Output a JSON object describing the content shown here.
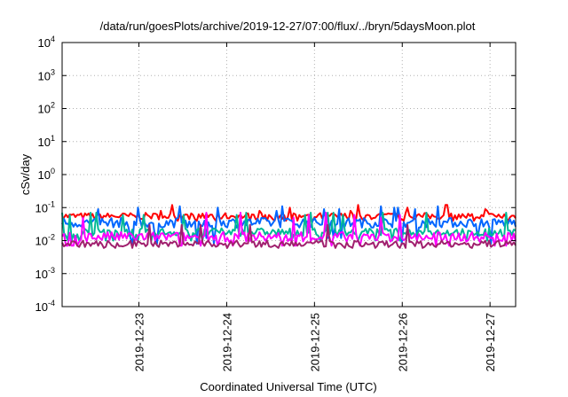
{
  "chart_data": {
    "type": "line",
    "title": "/data/run/goesPlots/archive/2019-12-27/07:00/flux/../bryn/5daysMoon.plot",
    "xlabel": "Coordinated Universal Time (UTC)",
    "ylabel": "cSv/day",
    "yscale": "log",
    "ylim": [
      0.0001,
      10000
    ],
    "y_ticks": [
      {
        "base": "10",
        "exp": "-4"
      },
      {
        "base": "10",
        "exp": "-3"
      },
      {
        "base": "10",
        "exp": "-2"
      },
      {
        "base": "10",
        "exp": "-1"
      },
      {
        "base": "10",
        "exp": "0"
      },
      {
        "base": "10",
        "exp": "1"
      },
      {
        "base": "10",
        "exp": "2"
      },
      {
        "base": "10",
        "exp": "3"
      },
      {
        "base": "10",
        "exp": "4"
      }
    ],
    "x_range": [
      "2019-12-22 03:00",
      "2019-12-27 07:00"
    ],
    "x_ticks": [
      "2019-12-23",
      "2019-12-24",
      "2019-12-25",
      "2019-12-26",
      "2019-12-27"
    ],
    "grid": true,
    "legend": "none",
    "series": [
      {
        "color": "#ff0000",
        "base": 0.055,
        "spread": 0.1,
        "spikes": [
          0.09,
          0.1,
          0.08,
          0.12
        ],
        "dips": [
          0.04
        ]
      },
      {
        "color": "#0066ff",
        "base": 0.035,
        "spread": 0.15,
        "spikes": [
          0.09,
          0.08,
          0.1,
          0.11
        ],
        "dips": [
          0.012,
          0.008
        ]
      },
      {
        "color": "#00b896",
        "base": 0.018,
        "spread": 0.12,
        "spikes": [
          0.06,
          0.07
        ],
        "dips": [
          0.01
        ]
      },
      {
        "color": "#ff00ff",
        "base": 0.013,
        "spread": 0.15,
        "spikes": [
          0.06,
          0.05,
          0.07
        ],
        "dips": [
          0.007
        ]
      },
      {
        "color": "#a0206e",
        "base": 0.008,
        "spread": 0.1,
        "spikes": [
          0.03
        ],
        "dips": [
          0.006
        ]
      }
    ]
  }
}
